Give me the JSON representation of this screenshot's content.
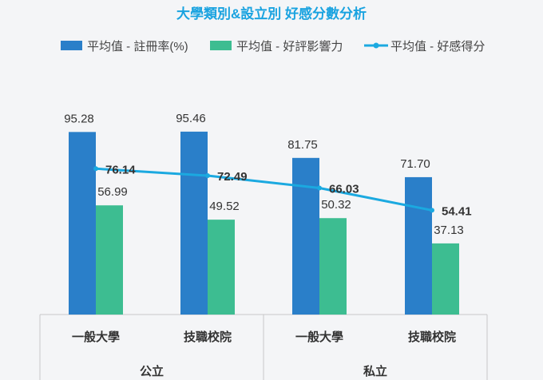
{
  "chart_data": {
    "type": "bar",
    "title": "大學類別&設立別 好感分數分析",
    "groups": [
      {
        "label": "公立",
        "categories": [
          "一般大學",
          "技職校院"
        ]
      },
      {
        "label": "私立",
        "categories": [
          "一般大學",
          "技職校院"
        ]
      }
    ],
    "categories": [
      "一般大學",
      "技職校院",
      "一般大學",
      "技職校院"
    ],
    "series": [
      {
        "name": "平均值 - 註冊率(%)",
        "type": "bar",
        "color": "#2a7fc9",
        "values": [
          95.28,
          95.46,
          81.75,
          71.7
        ],
        "labels": [
          "95.28",
          "95.46",
          "81.75",
          "71.70"
        ]
      },
      {
        "name": "平均值 - 好評影響力",
        "type": "bar",
        "color": "#3dbd91",
        "values": [
          56.99,
          49.52,
          50.32,
          37.13
        ],
        "labels": [
          "56.99",
          "49.52",
          "50.32",
          "37.13"
        ]
      },
      {
        "name": "平均值 - 好感得分",
        "type": "line",
        "color": "#1ba9e0",
        "values": [
          76.14,
          72.49,
          66.03,
          54.41
        ],
        "labels": [
          "76.14",
          "72.49",
          "66.03",
          "54.41"
        ]
      }
    ],
    "ylim": [
      0,
      110
    ],
    "legend_position": "top",
    "grid": false
  }
}
